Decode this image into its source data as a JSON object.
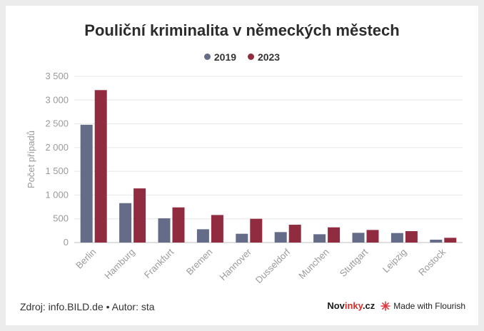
{
  "title": "Pouliční kriminalita v německých městech",
  "footer": {
    "source": "Zdroj: info.BILD.de • Autor: sta",
    "brand_prefix": "Nov",
    "brand_accent": "inky",
    "brand_suffix": ".cz",
    "made_with": "Made with Flourish"
  },
  "chart_data": {
    "type": "bar",
    "title": "Pouliční kriminalita v německých městech",
    "ylabel": "Počet případů",
    "xlabel": "",
    "ylim": [
      0,
      3500
    ],
    "yticks": [
      0,
      500,
      1000,
      1500,
      2000,
      2500,
      3000,
      3500
    ],
    "ytick_labels": [
      "0",
      "500",
      "1 000",
      "1 500",
      "2 000",
      "2 500",
      "3 000",
      "3 500"
    ],
    "grid": true,
    "legend": "top-center",
    "categories": [
      "Berlin",
      "Hamburg",
      "Frankfurt",
      "Bremen",
      "Hannover",
      "Dusseldorf",
      "Munchen",
      "Stuttgart",
      "Leipzig",
      "Rostock"
    ],
    "series": [
      {
        "name": "2019",
        "color": "#646c88",
        "values": [
          2480,
          830,
          510,
          280,
          185,
          220,
          175,
          205,
          200,
          60
        ]
      },
      {
        "name": "2023",
        "color": "#912c40",
        "values": [
          3210,
          1140,
          740,
          580,
          500,
          375,
          320,
          265,
          240,
          100
        ]
      }
    ]
  }
}
